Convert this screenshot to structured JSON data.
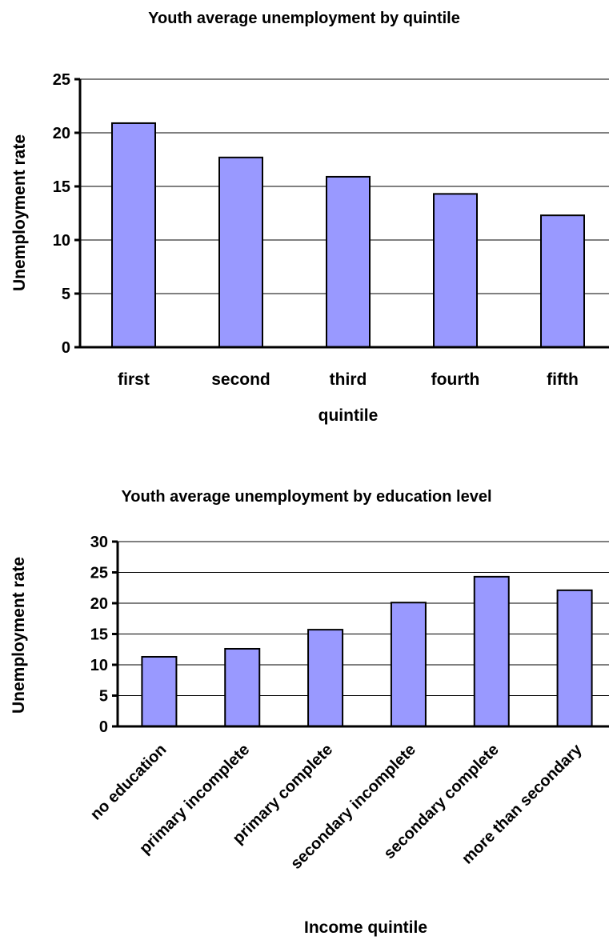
{
  "chart_data": [
    {
      "type": "bar",
      "title": "Youth average unemployment by quintile",
      "xlabel": "quintile",
      "ylabel": "Unemployment rate",
      "categories": [
        "first",
        "second",
        "third",
        "fourth",
        "fifth"
      ],
      "values": [
        20.9,
        17.7,
        15.9,
        14.3,
        12.3
      ],
      "yticks": [
        "0",
        "5",
        "10",
        "15",
        "20",
        "25"
      ],
      "ylim": [
        0,
        25
      ],
      "grid": true,
      "bar_color": "#9999ff"
    },
    {
      "type": "bar",
      "title": "Youth average unemployment by education level",
      "xlabel": "Income quintile",
      "ylabel": "Unemployment rate",
      "categories": [
        "no education",
        "primary incomplete",
        "primary complete",
        "secondary incomplete",
        "secondary complete",
        "more than secondary"
      ],
      "values": [
        11.3,
        12.6,
        15.7,
        20.1,
        24.3,
        22.1
      ],
      "yticks": [
        "0",
        "5",
        "10",
        "15",
        "20",
        "25",
        "30"
      ],
      "ylim": [
        0,
        30
      ],
      "grid": true,
      "bar_color": "#9999ff"
    }
  ]
}
